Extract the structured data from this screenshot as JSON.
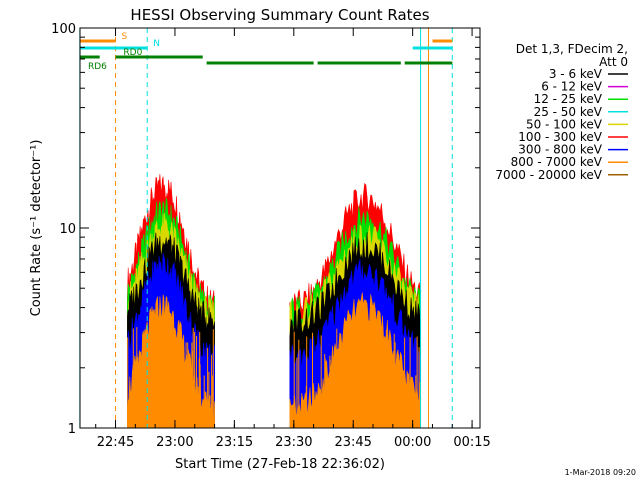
{
  "chart_data": {
    "type": "line",
    "title": "HESSI Observing Summary Count Rates",
    "xlabel": "Start Time (27-Feb-18 22:36:02)",
    "ylabel": "Count Rate (s⁻¹ detector⁻¹)",
    "y_scale": "log",
    "ylim": [
      1,
      100
    ],
    "xlim": [
      "22:36:02",
      "00:17:00"
    ],
    "y_ticks": [
      "1",
      "10",
      "100"
    ],
    "x_ticks": [
      "22:45",
      "23:00",
      "23:15",
      "23:30",
      "23:45",
      "00:00",
      "00:15"
    ],
    "grid": false,
    "legend_position": "right",
    "legend_header": [
      "Det 1,3, FDecim 2,",
      "Att 0"
    ],
    "series": [
      {
        "name": "3 - 6 keV",
        "color": "#000000"
      },
      {
        "name": "6 - 12 keV",
        "color": "#d000d0"
      },
      {
        "name": "12 - 25 keV",
        "color": "#00e000"
      },
      {
        "name": "25 - 50 keV",
        "color": "#00e0e0"
      },
      {
        "name": "50 - 100 keV",
        "color": "#d8d800"
      },
      {
        "name": "100 - 300 keV",
        "color": "#ff0000"
      },
      {
        "name": "300 - 800 keV",
        "color": "#0000ff"
      },
      {
        "name": "800 - 7000 keV",
        "color": "#ff8c00"
      },
      {
        "name": "7000 - 20000 keV",
        "color": "#a06000"
      }
    ],
    "envelopes": [
      {
        "series": "100 - 300 keV",
        "base": 4,
        "peak_early": 16,
        "peak_late": 14
      },
      {
        "series": "12 - 25 keV",
        "base": 3.8,
        "peak_early": 12,
        "peak_late": 11
      },
      {
        "series": "50 - 100 keV",
        "base": 3.6,
        "peak_early": 10,
        "peak_late": 9
      },
      {
        "series": "3 - 6 keV",
        "base": 3.3,
        "peak_early": 8.5,
        "peak_late": 8
      },
      {
        "series": "300 - 800 keV",
        "base": 2.2,
        "peak_early": 6.5,
        "peak_late": 6
      },
      {
        "series": "800 - 7000 keV",
        "base": 1.2,
        "peak_early": 4,
        "peak_late": 4
      }
    ],
    "flags": [
      {
        "label": "S",
        "color": "#ff8c00",
        "segments": [
          [
            "22:36",
            "22:45"
          ],
          [
            "00:05",
            "00:10"
          ]
        ]
      },
      {
        "label": "N",
        "color": "#00e0e0",
        "segments": [
          [
            "22:36",
            "22:53"
          ],
          [
            "00:00",
            "00:10"
          ]
        ]
      },
      {
        "label": "RD0",
        "color": "#008000",
        "segments": [
          [
            "22:36",
            "22:41"
          ],
          [
            "22:45",
            "23:07"
          ]
        ]
      },
      {
        "label": "RD6",
        "color": "#008000",
        "segments": [
          [
            "23:08",
            "23:35"
          ],
          [
            "23:36",
            "23:57"
          ],
          [
            "23:58",
            "00:10"
          ]
        ]
      }
    ],
    "vertical_markers": [
      {
        "time": "22:45",
        "color": "#ff8c00",
        "style": "dashed"
      },
      {
        "time": "22:53",
        "color": "#00e0e0",
        "style": "dashed"
      },
      {
        "time": "00:10",
        "color": "#00e0e0",
        "style": "dashed"
      },
      {
        "time": "00:04",
        "color": "#ff8c00",
        "style": "solid"
      },
      {
        "time": "00:02",
        "color": "#00e0e0",
        "style": "solid"
      },
      {
        "time": "22:36",
        "color": "#00e0e0",
        "style": "solid"
      }
    ],
    "timestamp": "1-Mar-2018 09:20"
  }
}
